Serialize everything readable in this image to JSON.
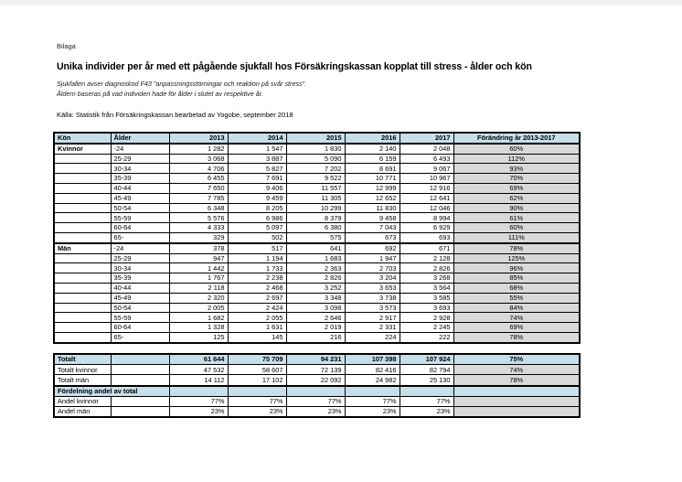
{
  "page": {
    "tag_label": "Bilaga",
    "title": "Unika individer per år med ett pågående sjukfall hos Försäkringskassan kopplat till stress - ålder och kön",
    "subtitle_line1": "Sjukfallen avser diagnoskod F43 \"anpassningsstörningar och reaktion på svår stress\".",
    "subtitle_line2": "Åldern baseras på vad individen hade för ålder i slutet av respektive år.",
    "source": "Källa: Statistik från Försäkringskassan bearbetad av Yogobe, september 2018"
  },
  "colors": {
    "header_blue": "#c6dfea",
    "cell_gray": "#d9d9d9",
    "border_black": "#000000"
  },
  "main_table": {
    "columns": [
      "Kön",
      "Ålder",
      "2013",
      "2014",
      "2015",
      "2016",
      "2017",
      "Förändring år 2013-2017"
    ],
    "groups": [
      {
        "gender": "Kvinnor",
        "rows": [
          {
            "age": "-24",
            "values": [
              "1 282",
              "1 547",
              "1 830",
              "2 140",
              "2 048"
            ],
            "change": "60%"
          },
          {
            "age": "25-29",
            "values": [
              "3 068",
              "3 887",
              "5 090",
              "6 159",
              "6 493"
            ],
            "change": "112%"
          },
          {
            "age": "30-34",
            "values": [
              "4 706",
              "5 827",
              "7 202",
              "8 691",
              "9 067"
            ],
            "change": "93%"
          },
          {
            "age": "35-39",
            "values": [
              "6 455",
              "7 691",
              "9 522",
              "10 771",
              "10 967"
            ],
            "change": "70%"
          },
          {
            "age": "40-44",
            "values": [
              "7 650",
              "9 406",
              "11 557",
              "12 999",
              "12 916"
            ],
            "change": "69%"
          },
          {
            "age": "45-49",
            "values": [
              "7 785",
              "9 459",
              "11 305",
              "12 652",
              "12 641"
            ],
            "change": "62%"
          },
          {
            "age": "50-54",
            "values": [
              "6 348",
              "8 205",
              "10 299",
              "11 830",
              "12 046"
            ],
            "change": "90%"
          },
          {
            "age": "55-59",
            "values": [
              "5 576",
              "6 986",
              "8 379",
              "9 458",
              "8 994"
            ],
            "change": "61%"
          },
          {
            "age": "60-64",
            "values": [
              "4 333",
              "5 097",
              "6 380",
              "7 043",
              "6 929"
            ],
            "change": "60%"
          },
          {
            "age": "65-",
            "values": [
              "329",
              "502",
              "575",
              "673",
              "693"
            ],
            "change": "111%"
          }
        ]
      },
      {
        "gender": "Män",
        "rows": [
          {
            "age": "-24",
            "values": [
              "378",
              "517",
              "641",
              "692",
              "671"
            ],
            "change": "78%"
          },
          {
            "age": "25-29",
            "values": [
              "947",
              "1 194",
              "1 683",
              "1 947",
              "2 128"
            ],
            "change": "125%"
          },
          {
            "age": "30-34",
            "values": [
              "1 442",
              "1 733",
              "2 363",
              "2 703",
              "2 826"
            ],
            "change": "96%"
          },
          {
            "age": "35-39",
            "values": [
              "1 767",
              "2 238",
              "2 826",
              "3 204",
              "3 268"
            ],
            "change": "85%"
          },
          {
            "age": "40-44",
            "values": [
              "2 118",
              "2 468",
              "3 252",
              "3 653",
              "3 564"
            ],
            "change": "68%"
          },
          {
            "age": "45-49",
            "values": [
              "2 320",
              "2 697",
              "3 348",
              "3 738",
              "3 585"
            ],
            "change": "55%"
          },
          {
            "age": "50-54",
            "values": [
              "2 005",
              "2 424",
              "3 098",
              "3 573",
              "3 693"
            ],
            "change": "84%"
          },
          {
            "age": "55-59",
            "values": [
              "1 682",
              "2 055",
              "2 646",
              "2 917",
              "2 928"
            ],
            "change": "74%"
          },
          {
            "age": "60-64",
            "values": [
              "1 328",
              "1 631",
              "2 019",
              "2 331",
              "2 245"
            ],
            "change": "69%"
          },
          {
            "age": "65-",
            "values": [
              "125",
              "145",
              "216",
              "224",
              "222"
            ],
            "change": "78%"
          }
        ]
      }
    ]
  },
  "summary_table": {
    "rows": [
      {
        "label": "Totalt",
        "values": [
          "61 644",
          "75 709",
          "94 231",
          "107 398",
          "107 924"
        ],
        "change": "75%",
        "style": "total"
      },
      {
        "label": "Totalt kvinnor",
        "values": [
          "47 532",
          "58 607",
          "72 139",
          "82 416",
          "82 794"
        ],
        "change": "74%",
        "style": "plain"
      },
      {
        "label": "Totalt män",
        "values": [
          "14 112",
          "17 102",
          "22 092",
          "24 982",
          "25 130"
        ],
        "change": "78%",
        "style": "plain"
      },
      {
        "label": "Fördelning andel av total",
        "values": [
          "",
          "",
          "",
          "",
          ""
        ],
        "change": "",
        "style": "section"
      },
      {
        "label": "Andel kvinnor",
        "values": [
          "77%",
          "77%",
          "77%",
          "77%",
          "77%"
        ],
        "change": "",
        "style": "plain"
      },
      {
        "label": "Andel män",
        "values": [
          "23%",
          "23%",
          "23%",
          "23%",
          "23%"
        ],
        "change": "",
        "style": "plain"
      }
    ]
  }
}
